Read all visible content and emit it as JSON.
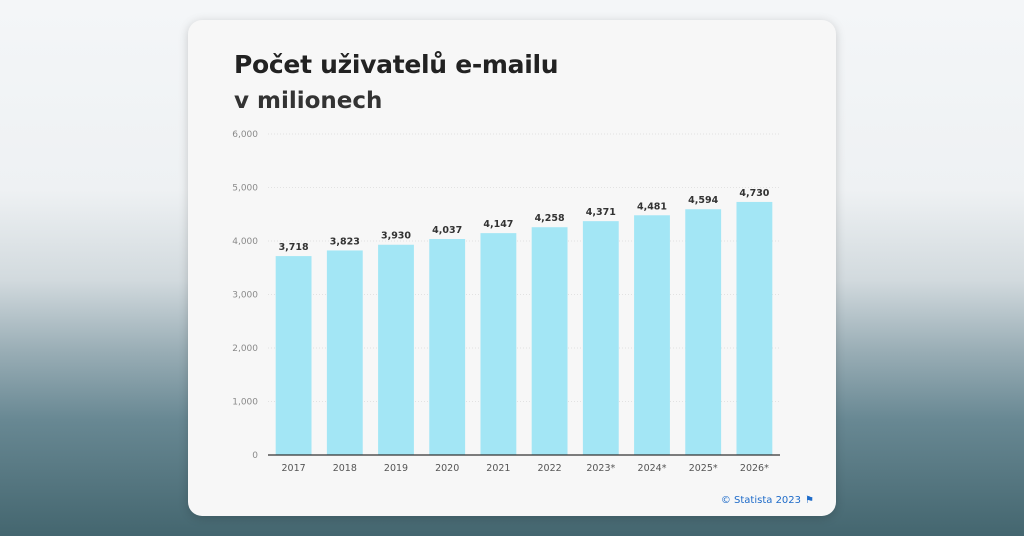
{
  "chart_data": {
    "type": "bar",
    "title": "Počet uživatelů e-mailu",
    "subtitle": "v milionech",
    "categories": [
      "2017",
      "2018",
      "2019",
      "2020",
      "2021",
      "2022",
      "2023*",
      "2024*",
      "2025*",
      "2026*"
    ],
    "values": [
      3718,
      3823,
      3930,
      4037,
      4147,
      4258,
      4371,
      4481,
      4594,
      4730
    ],
    "value_labels": [
      "3,718",
      "3,823",
      "3,930",
      "4,037",
      "4,147",
      "4,258",
      "4,371",
      "4,481",
      "4,594",
      "4,730"
    ],
    "yticks": [
      0,
      1000,
      2000,
      3000,
      4000,
      5000,
      6000
    ],
    "ytick_labels": [
      "0",
      "1,000",
      "2,000",
      "3,000",
      "4,000",
      "5,000",
      "6,000"
    ],
    "ylim": [
      0,
      6000
    ],
    "xlabel": "",
    "ylabel": "",
    "grid": true,
    "bar_color": "#a3e6f5",
    "source": "© Statista 2023"
  }
}
